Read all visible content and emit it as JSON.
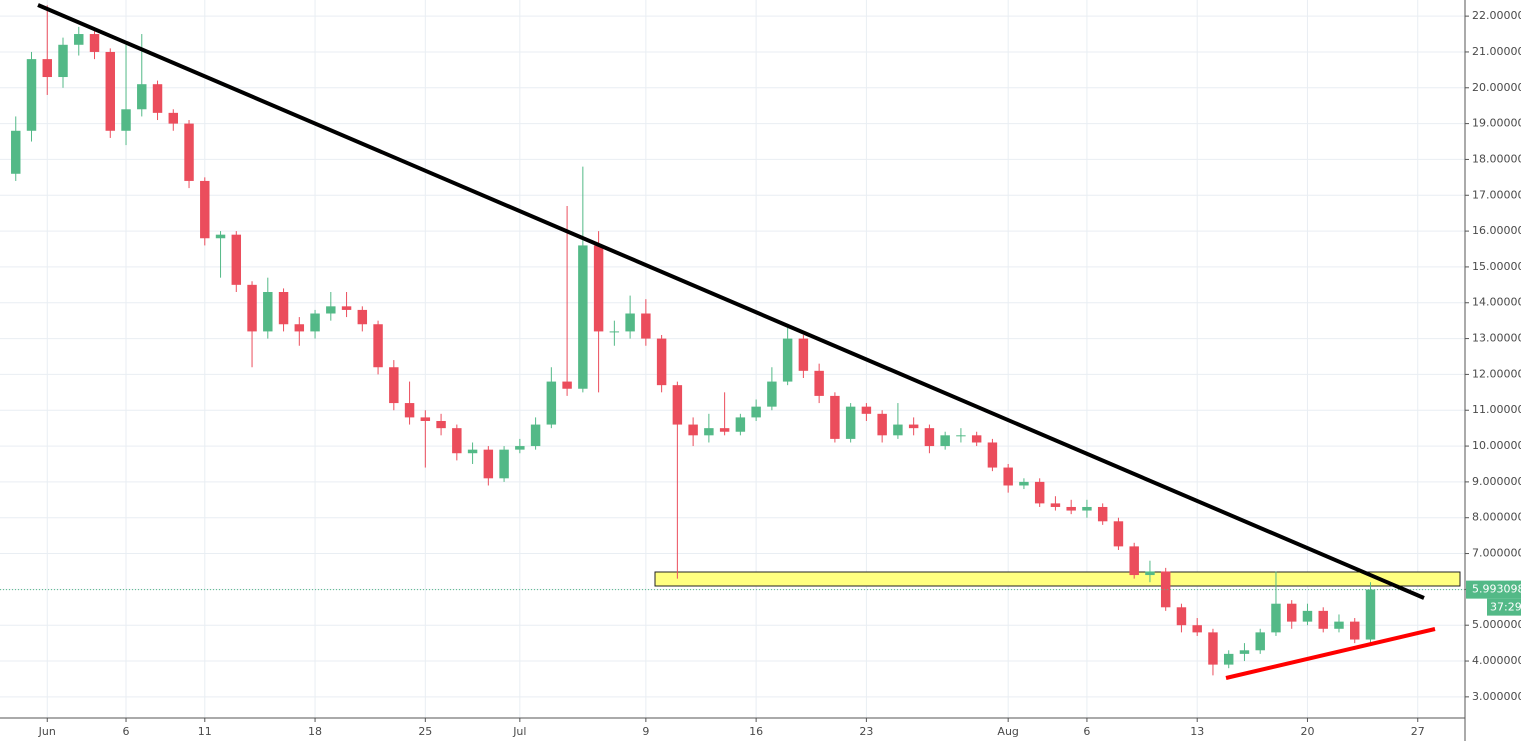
{
  "chart_data": {
    "type": "candlestick",
    "x": [
      "05-30",
      "05-31",
      "06-01",
      "06-02",
      "06-03",
      "06-04",
      "06-05",
      "06-06",
      "06-07",
      "06-08",
      "06-09",
      "06-10",
      "06-11",
      "06-12",
      "06-13",
      "06-14",
      "06-15",
      "06-16",
      "06-17",
      "06-18",
      "06-19",
      "06-20",
      "06-21",
      "06-22",
      "06-23",
      "06-24",
      "06-25",
      "06-26",
      "06-27",
      "06-28",
      "06-29",
      "06-30",
      "07-01",
      "07-02",
      "07-03",
      "07-04",
      "07-05",
      "07-06",
      "07-07",
      "07-08",
      "07-09",
      "07-10",
      "07-11",
      "07-12",
      "07-13",
      "07-14",
      "07-15",
      "07-16",
      "07-17",
      "07-18",
      "07-19",
      "07-20",
      "07-21",
      "07-22",
      "07-23",
      "07-24",
      "07-25",
      "07-26",
      "07-27",
      "07-28",
      "07-29",
      "07-30",
      "07-31",
      "08-01",
      "08-02",
      "08-03",
      "08-04",
      "08-05",
      "08-06",
      "08-07",
      "08-08",
      "08-09",
      "08-10",
      "08-11",
      "08-12",
      "08-13",
      "08-14",
      "08-15",
      "08-16",
      "08-17",
      "08-18",
      "08-19",
      "08-20",
      "08-21",
      "08-22",
      "08-23",
      "08-24"
    ],
    "open": [
      17.6,
      18.8,
      20.8,
      20.3,
      21.2,
      21.5,
      21.0,
      18.8,
      19.4,
      20.1,
      19.3,
      19.0,
      17.4,
      15.8,
      15.9,
      14.5,
      13.2,
      14.3,
      13.4,
      13.2,
      13.7,
      13.9,
      13.8,
      13.4,
      12.2,
      11.2,
      10.8,
      10.7,
      10.5,
      9.8,
      9.9,
      9.1,
      9.9,
      10.0,
      10.6,
      11.8,
      11.6,
      15.6,
      13.2,
      13.2,
      13.7,
      13.0,
      11.7,
      10.6,
      10.3,
      10.5,
      10.4,
      10.8,
      11.1,
      11.8,
      13.0,
      12.1,
      11.4,
      10.2,
      11.1,
      10.9,
      10.3,
      10.6,
      10.5,
      10.0,
      10.3,
      10.3,
      10.1,
      9.4,
      8.9,
      9.0,
      8.4,
      8.3,
      8.2,
      8.3,
      7.9,
      7.2,
      6.4,
      6.5,
      5.5,
      5.0,
      4.8,
      3.9,
      4.2,
      4.3,
      4.8,
      5.6,
      5.1,
      5.4,
      4.9,
      5.1,
      4.6
    ],
    "high": [
      19.2,
      21.0,
      22.3,
      21.4,
      21.7,
      21.6,
      21.1,
      21.3,
      21.5,
      20.2,
      19.4,
      19.1,
      17.5,
      16.0,
      16.0,
      14.6,
      14.7,
      14.4,
      13.6,
      13.8,
      14.3,
      14.3,
      13.9,
      13.5,
      12.4,
      11.8,
      11.0,
      10.9,
      10.6,
      10.1,
      10.0,
      10.0,
      10.2,
      10.8,
      12.2,
      16.7,
      17.8,
      16.0,
      13.5,
      14.2,
      14.1,
      13.1,
      11.8,
      10.8,
      10.9,
      11.5,
      10.9,
      11.3,
      12.2,
      13.3,
      13.1,
      12.3,
      11.5,
      11.2,
      11.2,
      11.0,
      11.2,
      10.8,
      10.6,
      10.4,
      10.5,
      10.4,
      10.2,
      9.5,
      9.1,
      9.1,
      8.6,
      8.5,
      8.5,
      8.4,
      8.0,
      7.3,
      6.8,
      6.6,
      5.6,
      5.2,
      4.9,
      4.3,
      4.5,
      4.9,
      6.5,
      5.7,
      5.6,
      5.5,
      5.3,
      5.2,
      6.2
    ],
    "low": [
      17.4,
      18.5,
      19.8,
      20.0,
      20.9,
      20.8,
      18.6,
      18.4,
      19.2,
      19.1,
      18.8,
      17.2,
      15.6,
      14.7,
      14.3,
      12.2,
      13.0,
      13.2,
      12.8,
      13.0,
      13.5,
      13.6,
      13.2,
      12.0,
      11.0,
      10.6,
      9.4,
      10.3,
      9.6,
      9.5,
      8.9,
      9.0,
      9.8,
      9.9,
      10.5,
      11.4,
      11.5,
      11.5,
      12.8,
      13.0,
      12.8,
      11.5,
      6.3,
      10.0,
      10.1,
      10.3,
      10.3,
      10.7,
      11.0,
      11.7,
      11.9,
      11.2,
      10.1,
      10.1,
      10.7,
      10.1,
      10.2,
      10.3,
      9.8,
      9.9,
      10.1,
      10.0,
      9.3,
      8.7,
      8.8,
      8.3,
      8.2,
      8.1,
      8.0,
      7.8,
      7.1,
      6.3,
      6.2,
      5.4,
      4.8,
      4.7,
      3.6,
      3.8,
      4.0,
      4.2,
      4.7,
      4.9,
      5.0,
      4.8,
      4.8,
      4.5,
      4.5
    ],
    "close": [
      18.8,
      20.8,
      20.3,
      21.2,
      21.5,
      21.0,
      18.8,
      19.4,
      20.1,
      19.3,
      19.0,
      17.4,
      15.8,
      15.9,
      14.5,
      13.2,
      14.3,
      13.4,
      13.2,
      13.7,
      13.9,
      13.8,
      13.4,
      12.2,
      11.2,
      10.8,
      10.7,
      10.5,
      9.8,
      9.9,
      9.1,
      9.9,
      10.0,
      10.6,
      11.8,
      11.6,
      15.6,
      13.2,
      13.2,
      13.7,
      13.0,
      11.7,
      10.6,
      10.3,
      10.5,
      10.4,
      10.8,
      11.1,
      11.8,
      13.0,
      12.1,
      11.4,
      10.2,
      11.1,
      10.9,
      10.3,
      10.6,
      10.5,
      10.0,
      10.3,
      10.3,
      10.1,
      9.4,
      8.9,
      9.0,
      8.4,
      8.3,
      8.2,
      8.3,
      7.9,
      7.2,
      6.4,
      6.5,
      5.5,
      5.0,
      4.8,
      3.9,
      4.2,
      4.3,
      4.8,
      5.6,
      5.1,
      5.4,
      4.9,
      5.1,
      4.6,
      5.993098
    ],
    "up_color": "#53b987",
    "down_color": "#eb4d5c",
    "last_price": {
      "value": 5.993098,
      "label": "5.993098"
    },
    "countdown": "37:29",
    "xlim": [
      "05-29",
      "08-30"
    ],
    "xticks": [
      {
        "value": "06-01",
        "label": "Jun"
      },
      {
        "value": "06-06",
        "label": "6"
      },
      {
        "value": "06-11",
        "label": "11"
      },
      {
        "value": "06-18",
        "label": "18"
      },
      {
        "value": "06-25",
        "label": "25"
      },
      {
        "value": "07-01",
        "label": "Jul"
      },
      {
        "value": "07-09",
        "label": "9"
      },
      {
        "value": "07-16",
        "label": "16"
      },
      {
        "value": "07-23",
        "label": "23"
      },
      {
        "value": "08-01",
        "label": "Aug"
      },
      {
        "value": "08-06",
        "label": "6"
      },
      {
        "value": "08-13",
        "label": "13"
      },
      {
        "value": "08-20",
        "label": "20"
      },
      {
        "value": "08-27",
        "label": "27"
      }
    ],
    "ylim": [
      2.41,
      22.45
    ],
    "yticks": [
      {
        "value": 3,
        "label": "3.000000"
      },
      {
        "value": 4,
        "label": "4.000000"
      },
      {
        "value": 5,
        "label": "5.000000"
      },
      {
        "value": 6,
        "label": "6.000000"
      },
      {
        "value": 7,
        "label": "7.000000"
      },
      {
        "value": 8,
        "label": "8.000000"
      },
      {
        "value": 9,
        "label": "9.000000"
      },
      {
        "value": 10,
        "label": "10.000000"
      },
      {
        "value": 11,
        "label": "11.000000"
      },
      {
        "value": 12,
        "label": "12.000000"
      },
      {
        "value": 13,
        "label": "13.000000"
      },
      {
        "value": 14,
        "label": "14.000000"
      },
      {
        "value": 15,
        "label": "15.000000"
      },
      {
        "value": 16,
        "label": "16.000000"
      },
      {
        "value": 17,
        "label": "17.000000"
      },
      {
        "value": 18,
        "label": "18.000000"
      },
      {
        "value": 19,
        "label": "19.000000"
      },
      {
        "value": 20,
        "label": "20.000000"
      },
      {
        "value": 21,
        "label": "21.000000"
      },
      {
        "value": 22,
        "label": "22.000000"
      }
    ],
    "grid": true
  }
}
